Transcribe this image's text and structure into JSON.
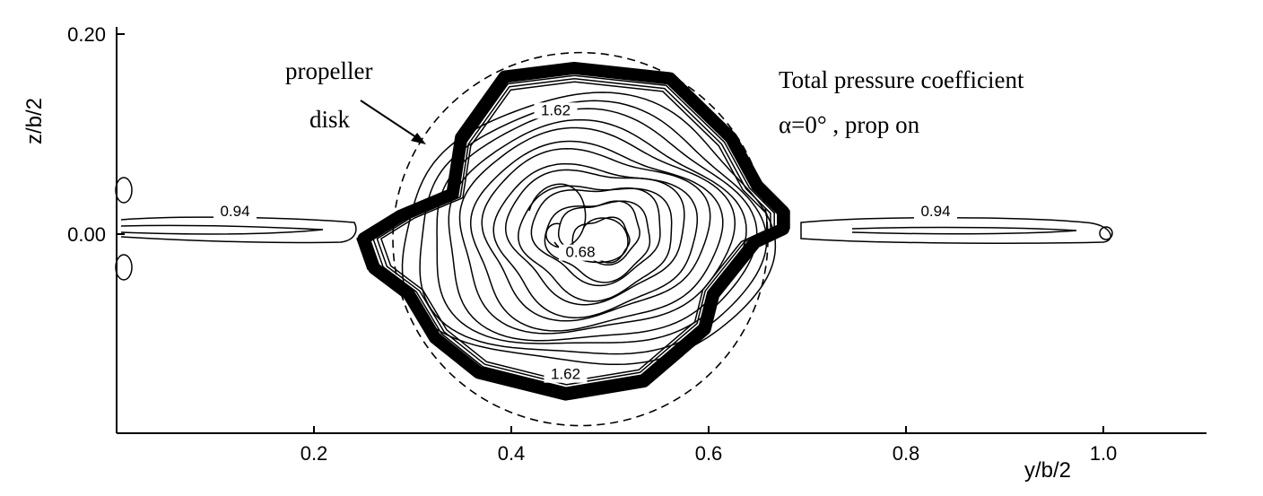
{
  "chart_data": {
    "type": "contour",
    "title": "Total pressure coefficient",
    "subtitle": "α=0° , prop on",
    "xlabel": "y/b/2",
    "ylabel": "z/b/2",
    "xlim": [
      0.0,
      1.1
    ],
    "ylim": [
      -0.2,
      0.2
    ],
    "x_ticks": [
      0.2,
      0.4,
      0.6,
      0.8,
      1.0
    ],
    "x_tick_labels": [
      "0.2",
      "0.4",
      "0.6",
      "0.8",
      "1.0"
    ],
    "y_ticks": [
      0.2,
      0.0
    ],
    "y_tick_labels": [
      "0.20",
      "0.00"
    ],
    "grid": false,
    "propeller_disk": {
      "label_line1": "propeller",
      "label_line2": "disk",
      "center": [
        0.47,
        -0.005
      ],
      "radius": 0.19
    },
    "propeller_dashed_hub": {
      "center": [
        0.47,
        -0.005
      ],
      "rx": 0.19,
      "ry": 0.19
    },
    "contour_labels": [
      {
        "text": "0.94",
        "x": 0.12,
        "y": 0.018
      },
      {
        "text": "0.94",
        "x": 0.83,
        "y": 0.018
      },
      {
        "text": "1.62",
        "x": 0.445,
        "y": 0.119
      },
      {
        "text": "1.62",
        "x": 0.455,
        "y": -0.145
      },
      {
        "text": "0.68",
        "x": 0.47,
        "y": -0.023
      }
    ],
    "contour_levels": [
      0.68,
      0.94,
      1.62
    ]
  }
}
